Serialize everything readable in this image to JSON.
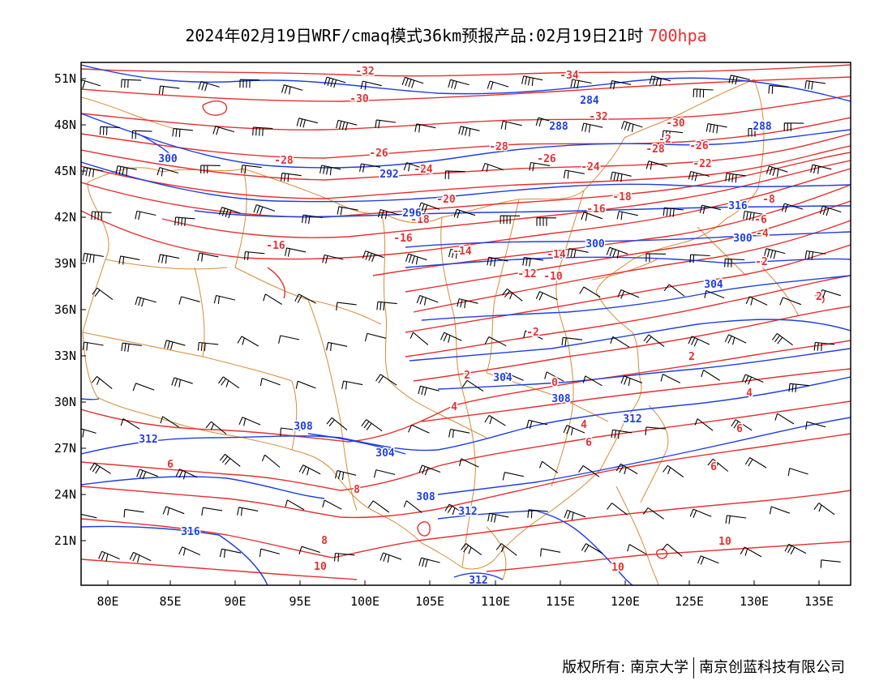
{
  "title": {
    "main": "2024年02月19日WRF/cmaq模式36km预报产品:02月19日21时",
    "level": "700hpa",
    "level_color": "#e53030"
  },
  "map": {
    "lon_range": [
      78,
      138
    ],
    "lat_range": [
      18,
      52
    ],
    "lon_ticks": [
      "80E",
      "85E",
      "90E",
      "95E",
      "100E",
      "105E",
      "110E",
      "115E",
      "120E",
      "125E",
      "130E",
      "135E"
    ],
    "lat_ticks": [
      "51N",
      "48N",
      "45N",
      "42N",
      "39N",
      "36N",
      "33N",
      "30N",
      "27N",
      "24N",
      "21N"
    ],
    "colors": {
      "temperature": "#e53030",
      "geopotential": "#1f3fe0",
      "border": "#d98a35",
      "wind": "#000000"
    },
    "temperature_labels": [
      "-34",
      "-32",
      "-32",
      "-30",
      "-30",
      "-28",
      "-28",
      "-28",
      "-26",
      "-26",
      "-26",
      "-24",
      "-24",
      "-22",
      "-20",
      "-18",
      "-18",
      "-16",
      "-16",
      "-16",
      "-14",
      "-14",
      "-12",
      "-10",
      "-8",
      "-6",
      "-4",
      "-2",
      "-2",
      "-2",
      "0",
      "2",
      "2",
      "2",
      "4",
      "4",
      "4",
      "6",
      "6",
      "6",
      "6",
      "8",
      "8",
      "10",
      "10",
      "10"
    ],
    "height_labels": [
      "284",
      "288",
      "288",
      "292",
      "296",
      "300",
      "300",
      "300",
      "304",
      "304",
      "304",
      "308",
      "308",
      "308",
      "312",
      "312",
      "312",
      "312",
      "316",
      "316"
    ]
  },
  "footer": {
    "copyright": "版权所有: 南京大学",
    "company": "南京创蓝科技有限公司"
  }
}
